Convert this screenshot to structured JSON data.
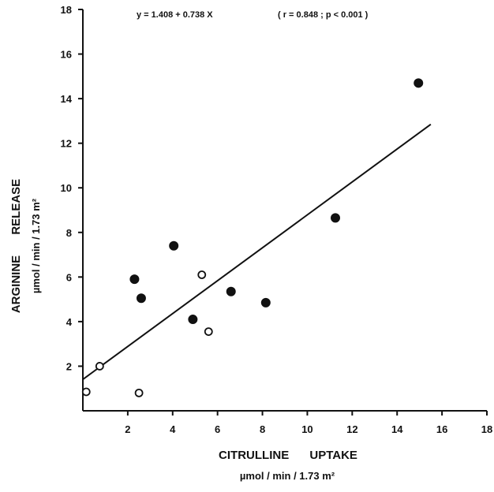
{
  "chart_data": {
    "type": "scatter",
    "title": "",
    "xlabel": "CITRULLINE UPTAKE",
    "xunit": "µmol / min / 1.73 m²",
    "ylabel": "ARGININE RELEASE",
    "yunit": "µmol / min / 1.73 m²",
    "xlim": [
      0,
      18
    ],
    "ylim": [
      0,
      18
    ],
    "xticks": [
      2,
      4,
      6,
      8,
      10,
      12,
      14,
      16,
      18
    ],
    "yticks": [
      2,
      4,
      6,
      8,
      10,
      12,
      14,
      16,
      18
    ],
    "grid": false,
    "annotation": {
      "equation": "y = 1.408 + 0.738 X",
      "stats": "( r = 0.848 ; p < 0.001 )"
    },
    "regression": {
      "intercept": 1.408,
      "slope": 0.738,
      "x_range": [
        0,
        15.5
      ]
    },
    "series": [
      {
        "marker": "filled",
        "points": [
          {
            "x": 2.3,
            "y": 5.9
          },
          {
            "x": 2.6,
            "y": 5.05
          },
          {
            "x": 4.05,
            "y": 7.4
          },
          {
            "x": 4.9,
            "y": 4.1
          },
          {
            "x": 6.6,
            "y": 5.35
          },
          {
            "x": 8.15,
            "y": 4.85
          },
          {
            "x": 11.25,
            "y": 8.65
          },
          {
            "x": 14.95,
            "y": 14.7
          }
        ]
      },
      {
        "marker": "open",
        "points": [
          {
            "x": 0.15,
            "y": 0.85
          },
          {
            "x": 0.75,
            "y": 2.0
          },
          {
            "x": 2.5,
            "y": 0.8
          },
          {
            "x": 5.3,
            "y": 6.1
          },
          {
            "x": 5.6,
            "y": 3.55
          }
        ]
      }
    ]
  }
}
